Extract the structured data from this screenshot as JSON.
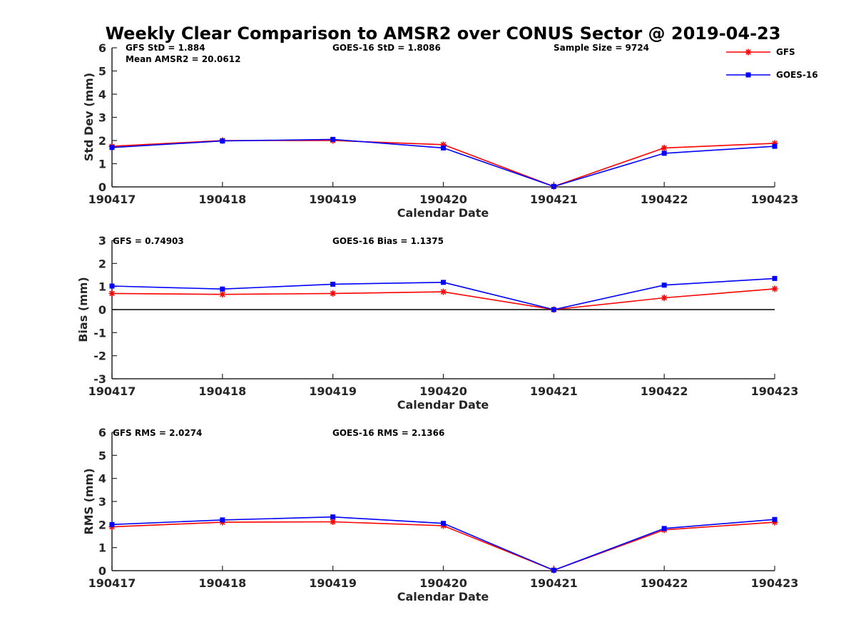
{
  "title": "Weekly Clear Comparison to AMSR2 over CONUS Sector @ 2019-04-23",
  "colors": {
    "gfs": "#ff0000",
    "goes": "#0000ff",
    "axis": "#262626",
    "zero_line": "#000000"
  },
  "legend": {
    "placement": "top-right",
    "entries": [
      {
        "label": "GFS",
        "marker": "asterisk",
        "color": "#ff0000"
      },
      {
        "label": "GOES-16",
        "marker": "square",
        "color": "#0000ff"
      }
    ]
  },
  "chart_data": [
    {
      "type": "line",
      "ylabel": "Std Dev (mm)",
      "xlabel": "Calendar Date",
      "ylim": [
        0,
        6
      ],
      "yticks": [
        "0",
        "1",
        "2",
        "3",
        "4",
        "5",
        "6"
      ],
      "categories": [
        "190417",
        "190418",
        "190419",
        "190420",
        "190421",
        "190422",
        "190423"
      ],
      "series": [
        {
          "name": "GFS",
          "values": [
            1.75,
            2.0,
            2.0,
            1.82,
            0.02,
            1.68,
            1.88
          ]
        },
        {
          "name": "GOES-16",
          "values": [
            1.7,
            1.98,
            2.05,
            1.68,
            0.02,
            1.45,
            1.75
          ]
        }
      ],
      "zero_line": false,
      "annotations": [
        "GFS StD = 1.884",
        "Mean AMSR2 = 20.0612",
        "GOES-16 StD = 1.8086",
        "Sample Size = 9724"
      ]
    },
    {
      "type": "line",
      "ylabel": "Bias (mm)",
      "xlabel": "Calendar Date",
      "ylim": [
        -3,
        3
      ],
      "yticks": [
        "-3",
        "-2",
        "-1",
        "0",
        "1",
        "2",
        "3"
      ],
      "categories": [
        "190417",
        "190418",
        "190419",
        "190420",
        "190421",
        "190422",
        "190423"
      ],
      "series": [
        {
          "name": "GFS",
          "values": [
            0.7,
            0.66,
            0.7,
            0.77,
            0.0,
            0.51,
            0.9
          ]
        },
        {
          "name": "GOES-16",
          "values": [
            1.02,
            0.89,
            1.1,
            1.18,
            0.0,
            1.06,
            1.35
          ]
        }
      ],
      "zero_line": true,
      "annotations": [
        "GFS = 0.74903",
        "GOES-16 Bias  = 1.1375"
      ]
    },
    {
      "type": "line",
      "ylabel": "RMS (mm)",
      "xlabel": "Calendar Date",
      "ylim": [
        0,
        6
      ],
      "yticks": [
        "0",
        "1",
        "2",
        "3",
        "4",
        "5",
        "6"
      ],
      "categories": [
        "190417",
        "190418",
        "190419",
        "190420",
        "190421",
        "190422",
        "190423"
      ],
      "series": [
        {
          "name": "GFS",
          "values": [
            1.9,
            2.1,
            2.12,
            1.95,
            0.02,
            1.77,
            2.1
          ]
        },
        {
          "name": "GOES-16",
          "values": [
            2.0,
            2.2,
            2.33,
            2.05,
            0.02,
            1.83,
            2.22
          ]
        }
      ],
      "zero_line": false,
      "annotations": [
        "GFS RMS = 2.0274",
        "GOES-16 RMS = 2.1366"
      ]
    }
  ]
}
